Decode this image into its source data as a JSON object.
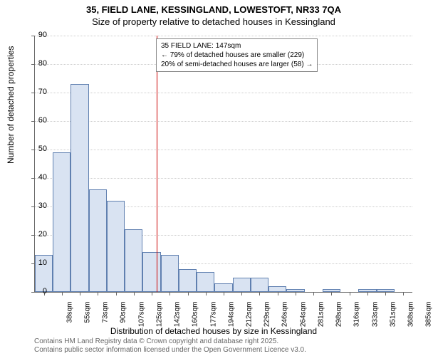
{
  "title_main": "35, FIELD LANE, KESSINGLAND, LOWESTOFT, NR33 7QA",
  "title_sub": "Size of property relative to detached houses in Kessingland",
  "ylabel": "Number of detached properties",
  "xlabel": "Distribution of detached houses by size in Kessingland",
  "footer1": "Contains HM Land Registry data © Crown copyright and database right 2025.",
  "footer2": "Contains public sector information licensed under the Open Government Licence v3.0.",
  "chart": {
    "type": "histogram",
    "ylim": [
      0,
      90
    ],
    "ytick_step": 10,
    "bar_color": "#d9e3f2",
    "bar_border": "#6080b0",
    "grid_color": "#cccccc",
    "background": "#ffffff",
    "ref_line_color": "#cc0000",
    "ref_line_x": 147,
    "title_fontsize": 13,
    "label_fontsize": 12,
    "tick_fontsize": 10,
    "categories": [
      "38sqm",
      "55sqm",
      "73sqm",
      "90sqm",
      "107sqm",
      "125sqm",
      "142sqm",
      "160sqm",
      "177sqm",
      "194sqm",
      "212sqm",
      "229sqm",
      "246sqm",
      "264sqm",
      "281sqm",
      "298sqm",
      "316sqm",
      "333sqm",
      "351sqm",
      "368sqm",
      "385sqm"
    ],
    "values": [
      13,
      49,
      73,
      36,
      32,
      22,
      14,
      13,
      8,
      7,
      3,
      5,
      5,
      2,
      1,
      0,
      1,
      0,
      1,
      1,
      0
    ],
    "info_box": {
      "line1": "35 FIELD LANE: 147sqm",
      "line2": "← 79% of detached houses are smaller (229)",
      "line3": "20% of semi-detached houses are larger (58) →"
    }
  }
}
